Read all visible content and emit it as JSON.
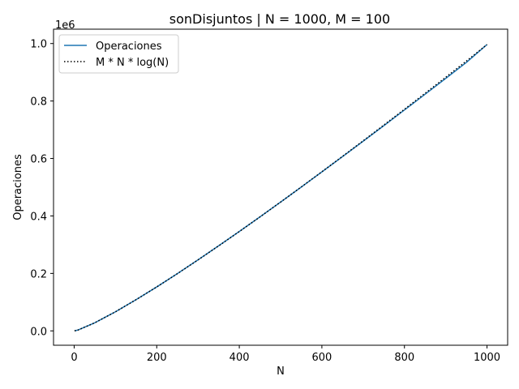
{
  "chart_data": {
    "type": "line",
    "title": "sonDisjuntos | N = 1000, M = 100",
    "xlabel": "N",
    "ylabel": "Operaciones",
    "y_offset_label": "1e6",
    "xlim": [
      -50,
      1050
    ],
    "ylim": [
      -0.05,
      1.05
    ],
    "y_scale_factor": 1000000,
    "x_ticks": [
      0,
      200,
      400,
      600,
      800,
      1000
    ],
    "x_tick_labels": [
      "0",
      "200",
      "400",
      "600",
      "800",
      "1000"
    ],
    "y_ticks": [
      0.0,
      0.2,
      0.4,
      0.6,
      0.8,
      1.0
    ],
    "y_tick_labels": [
      "0.0",
      "0.2",
      "0.4",
      "0.6",
      "0.8",
      "1.0"
    ],
    "grid": false,
    "legend_position": "top-left",
    "series": [
      {
        "name": "Operaciones",
        "color": "#1f77b4",
        "style": "solid",
        "x": [
          1,
          10,
          50,
          100,
          150,
          200,
          250,
          300,
          350,
          400,
          450,
          500,
          550,
          600,
          650,
          700,
          750,
          800,
          850,
          900,
          950,
          1000
        ],
        "y": [
          0.0,
          0.0033,
          0.0282,
          0.0664,
          0.1086,
          0.1529,
          0.1993,
          0.2471,
          0.2961,
          0.346,
          0.3967,
          0.4483,
          0.5004,
          0.5533,
          0.6065,
          0.6601,
          0.714,
          0.7688,
          0.8235,
          0.8786,
          0.9341,
          0.9966
        ]
      },
      {
        "name": "M * N * log(N)",
        "color": "#000000",
        "style": "dotted",
        "x": [
          1,
          10,
          50,
          100,
          150,
          200,
          250,
          300,
          350,
          400,
          450,
          500,
          550,
          600,
          650,
          700,
          750,
          800,
          850,
          900,
          950,
          1000
        ],
        "y": [
          0.0,
          0.0033,
          0.0282,
          0.0664,
          0.1086,
          0.1529,
          0.1991,
          0.2469,
          0.2957,
          0.3457,
          0.3965,
          0.4483,
          0.5007,
          0.5538,
          0.6074,
          0.6615,
          0.7162,
          0.7713,
          0.8268,
          0.8827,
          0.939,
          0.9966
        ]
      }
    ]
  }
}
